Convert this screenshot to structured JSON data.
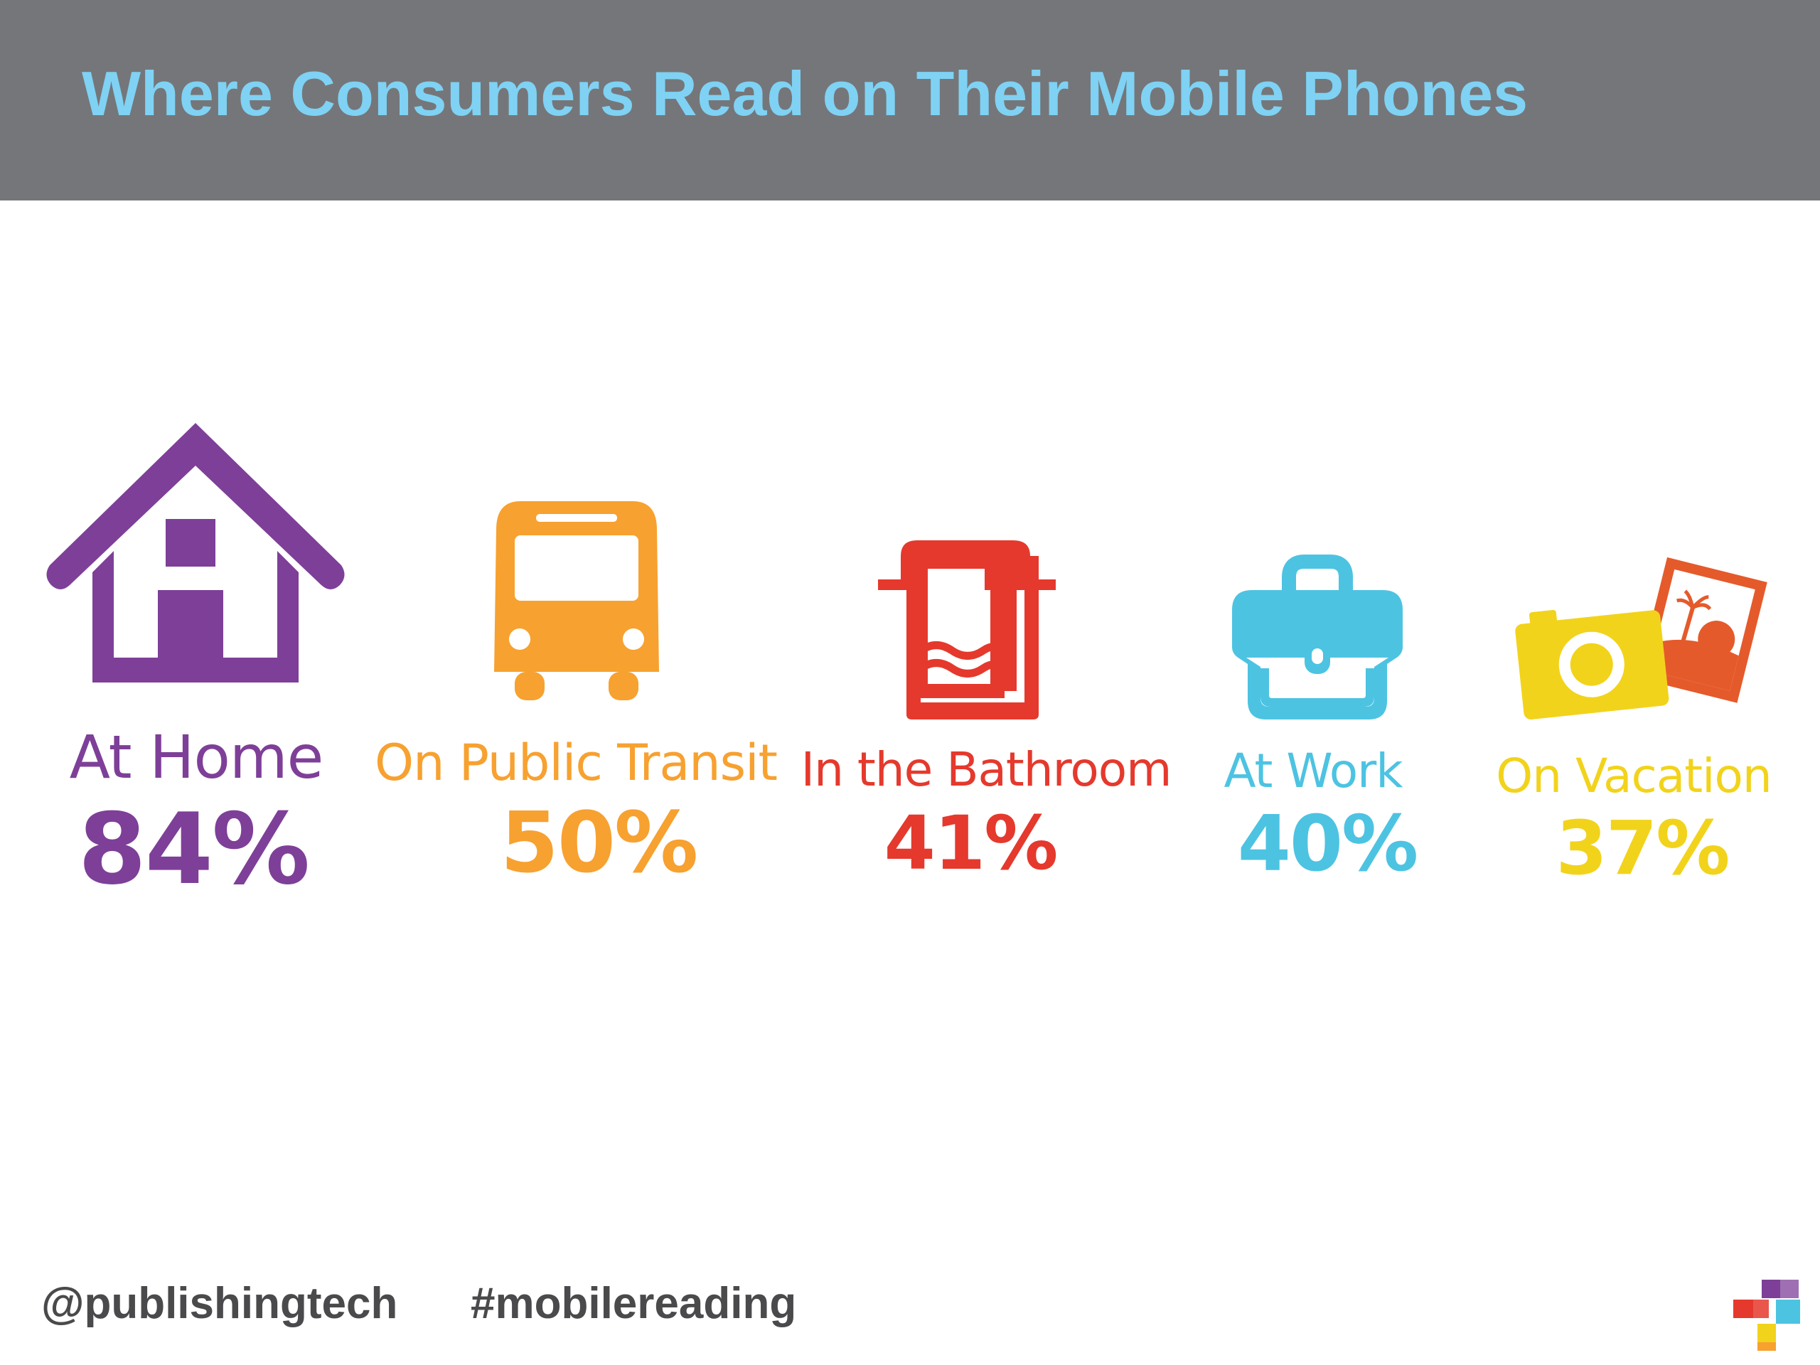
{
  "title": "Where Consumers Read on Their Mobile Phones",
  "chart_data": {
    "type": "table",
    "title": "Where Consumers Read on Their Mobile Phones",
    "unit": "%",
    "categories": [
      "At Home",
      "On Public Transit",
      "In the Bathroom",
      "At Work",
      "On Vacation"
    ],
    "values": [
      84,
      50,
      41,
      40,
      37
    ],
    "value_labels": [
      "84%",
      "50%",
      "41%",
      "40%",
      "37%"
    ],
    "icons": [
      "house-icon",
      "bus-icon",
      "towel-icon",
      "briefcase-icon",
      "camera-photo-icon"
    ],
    "colors": [
      "#7e3f98",
      "#f7a130",
      "#e5392d",
      "#4dc3e2",
      "#f2d31b"
    ]
  },
  "footer": {
    "handle": "@publishingtech",
    "hashtag": "#mobilereading"
  },
  "logo": {
    "icon": "publishing-technology-logo",
    "colors": [
      "#7e3f98",
      "#e5392d",
      "#4dc3e2",
      "#f2d31b",
      "#f7a130"
    ]
  }
}
